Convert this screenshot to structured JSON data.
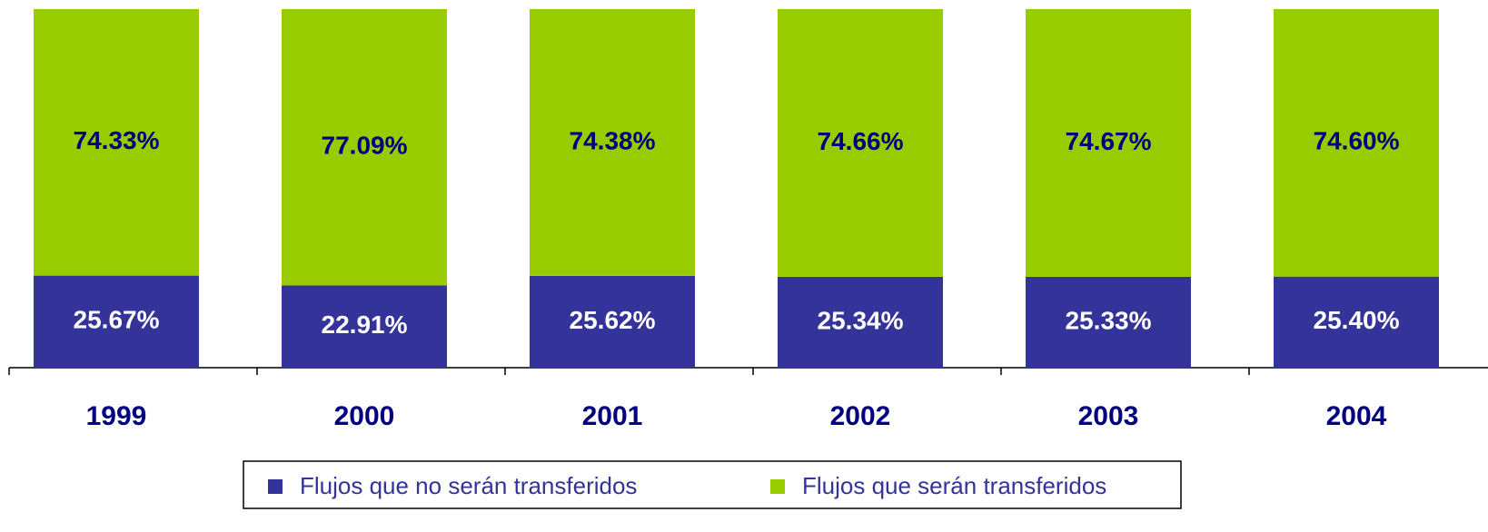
{
  "chart_data": {
    "type": "stacked_bar",
    "categories": [
      "1999",
      "2000",
      "2001",
      "2002",
      "2003",
      "2004"
    ],
    "series": [
      {
        "name": "Flujos que no serán transferidos",
        "color": "#333399",
        "values": [
          25.67,
          22.91,
          25.62,
          25.34,
          25.33,
          25.4
        ],
        "value_labels": [
          "25.67%",
          "22.91%",
          "25.62%",
          "25.34%",
          "25.33%",
          "25.40%"
        ]
      },
      {
        "name": "Flujos que serán transferidos",
        "color": "#99cc00",
        "values": [
          74.33,
          77.09,
          74.38,
          74.66,
          74.67,
          74.6
        ],
        "value_labels": [
          "74.33%",
          "77.09%",
          "74.38%",
          "74.66%",
          "74.67%",
          "74.60%"
        ]
      }
    ],
    "ylim": [
      0,
      100
    ]
  }
}
